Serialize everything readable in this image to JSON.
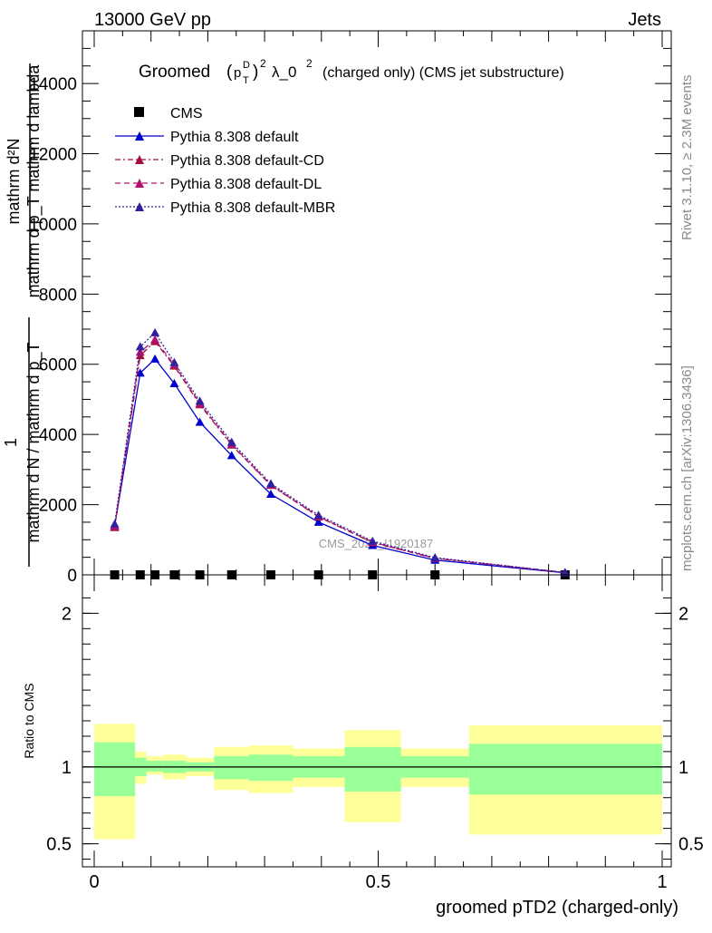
{
  "header": {
    "left": "13000 GeV pp",
    "right": "Jets"
  },
  "side_text": {
    "top": "Rivet 3.1.10, ≥ 2.3M events",
    "bottom": "mcplots.cern.ch [arXiv:1306.3436]"
  },
  "watermark": "CMS_2021_I1920187",
  "chart_data": [
    {
      "type": "line",
      "title_main": "Groomed",
      "title_sup": "2",
      "title_p": "p",
      "title_psup": "D",
      "title_psub": "T",
      "title_rest": "λ_0",
      "title_rest_sup": "2",
      "title_tail": "(charged only) (CMS jet substructure)",
      "ylabel_lines": [
        "mathrm d²N",
        "mathrm d p_T mathrm d lambda",
        "1",
        "mathrm d N / mathrm d p_T"
      ],
      "xlim": [
        0,
        1
      ],
      "ylim": [
        0,
        15500
      ],
      "yticks": [
        {
          "v": 0,
          "label": "0"
        },
        {
          "v": 2000,
          "label": "2000"
        },
        {
          "v": 4000,
          "label": "4000"
        },
        {
          "v": 6000,
          "label": "6000"
        },
        {
          "v": 8000,
          "label": "8000"
        },
        {
          "v": 10000,
          "label": "10000"
        },
        {
          "v": 12000,
          "label": "12000"
        },
        {
          "v": 14000,
          "label": "14000"
        }
      ],
      "legend": [
        "CMS",
        "Pythia 8.308 default",
        "Pythia 8.308 default-CD",
        "Pythia 8.308 default-DL",
        "Pythia 8.308 default-MBR"
      ],
      "x": [
        0.036,
        0.081,
        0.107,
        0.141,
        0.186,
        0.242,
        0.311,
        0.395,
        0.49,
        0.6,
        0.829
      ],
      "series": [
        {
          "name": "CMS",
          "color": "#000000",
          "style": "marker",
          "values": [
            0,
            0,
            0,
            0,
            0,
            0,
            0,
            0,
            0,
            0,
            0
          ]
        },
        {
          "name": "Pythia 8.308 default",
          "color": "#0000cc",
          "style": "solid",
          "values": [
            1400,
            5750,
            6150,
            5450,
            4350,
            3400,
            2300,
            1500,
            840,
            420,
            60
          ]
        },
        {
          "name": "Pythia 8.308 default-CD",
          "color": "#a0103a",
          "style": "dashdot",
          "values": [
            1350,
            6250,
            6650,
            5950,
            4850,
            3700,
            2550,
            1650,
            920,
            470,
            65
          ]
        },
        {
          "name": "Pythia 8.308 default-DL",
          "color": "#b01070",
          "style": "dashed",
          "values": [
            1380,
            6350,
            6700,
            5980,
            4880,
            3720,
            2560,
            1660,
            930,
            475,
            66
          ]
        },
        {
          "name": "Pythia 8.308 default-MBR",
          "color": "#3020a0",
          "style": "dotted",
          "values": [
            1450,
            6500,
            6900,
            6050,
            4950,
            3780,
            2600,
            1700,
            960,
            490,
            68
          ]
        }
      ]
    },
    {
      "type": "area",
      "ylabel": "Ratio to CMS",
      "xlabel": "groomed pTD2 (charged-only)",
      "xlim": [
        0,
        1
      ],
      "ylim": [
        0.35,
        2.25
      ],
      "xticks": [
        {
          "v": 0,
          "label": "0"
        },
        {
          "v": 0.5,
          "label": "0.5"
        },
        {
          "v": 1,
          "label": "1"
        }
      ],
      "yticks": [
        {
          "v": 0.5,
          "label": "0.5"
        },
        {
          "v": 1,
          "label": "1"
        },
        {
          "v": 2,
          "label": "2"
        }
      ],
      "bin_edges": [
        0,
        0.072,
        0.092,
        0.121,
        0.162,
        0.211,
        0.272,
        0.35,
        0.441,
        0.54,
        0.66,
        1.0
      ],
      "yellow_band": {
        "color": "#ffff99",
        "lo": [
          0.53,
          0.89,
          0.95,
          0.92,
          0.94,
          0.85,
          0.83,
          0.87,
          0.64,
          0.87,
          0.56
        ],
        "hi": [
          1.28,
          1.1,
          1.07,
          1.08,
          1.06,
          1.13,
          1.14,
          1.12,
          1.24,
          1.12,
          1.27
        ]
      },
      "green_band": {
        "color": "#99ff99",
        "lo": [
          0.81,
          0.94,
          0.97,
          0.96,
          0.97,
          0.92,
          0.91,
          0.93,
          0.84,
          0.93,
          0.82
        ],
        "hi": [
          1.16,
          1.06,
          1.04,
          1.04,
          1.03,
          1.07,
          1.08,
          1.07,
          1.13,
          1.07,
          1.15
        ]
      },
      "reference": 1
    }
  ]
}
